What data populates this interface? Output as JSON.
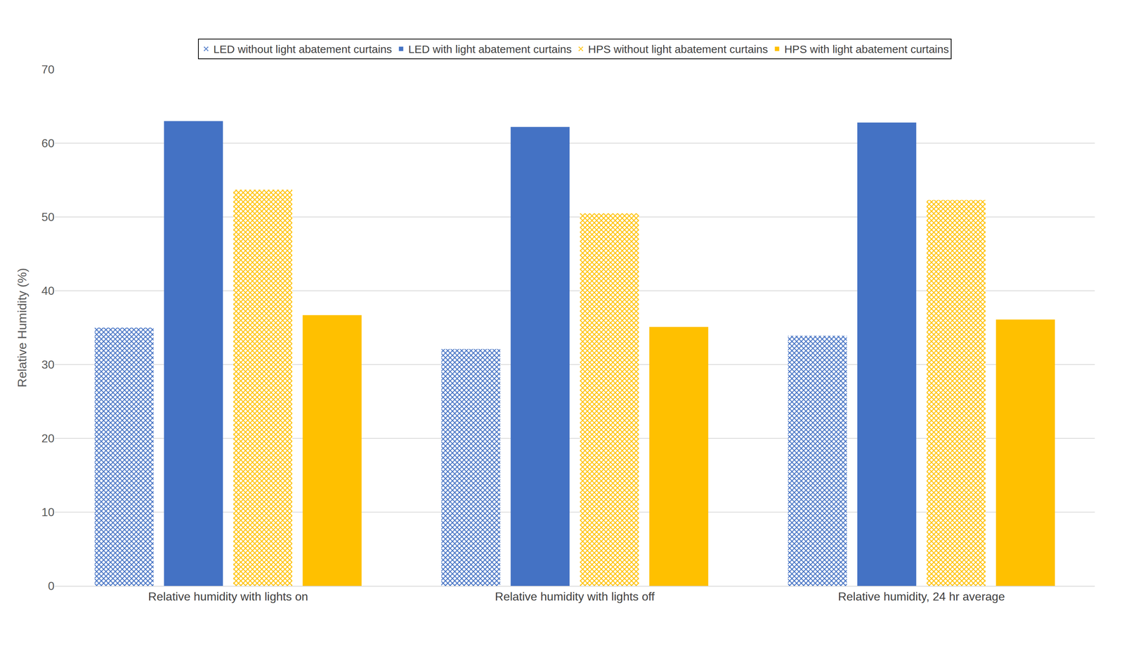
{
  "chart_data": {
    "type": "bar",
    "y_label": "Relative Humidity (%)",
    "categories": [
      "Relative humidity with lights on",
      "Relative humidity with lights off",
      "Relative humidity, 24 hr average"
    ],
    "series": [
      {
        "name": "LED without light abatement curtains",
        "color": "#4472c4",
        "marker": "hatched",
        "values": [
          35.0,
          32.1,
          33.9
        ]
      },
      {
        "name": "LED with light abatement curtains",
        "color": "#4472c4",
        "marker": "solid",
        "values": [
          63.0,
          62.2,
          62.8
        ]
      },
      {
        "name": "HPS without light abatement curtains",
        "color": "#ffc000",
        "marker": "hatched",
        "values": [
          53.7,
          50.5,
          52.3
        ]
      },
      {
        "name": "HPS with light abatement curtains",
        "color": "#ffc000",
        "marker": "solid",
        "values": [
          36.7,
          35.1,
          36.1
        ]
      }
    ],
    "ylim": [
      0,
      70
    ],
    "yticks": [
      0,
      10,
      20,
      30,
      40,
      50,
      60,
      70
    ],
    "grid": true,
    "legend": "top"
  }
}
